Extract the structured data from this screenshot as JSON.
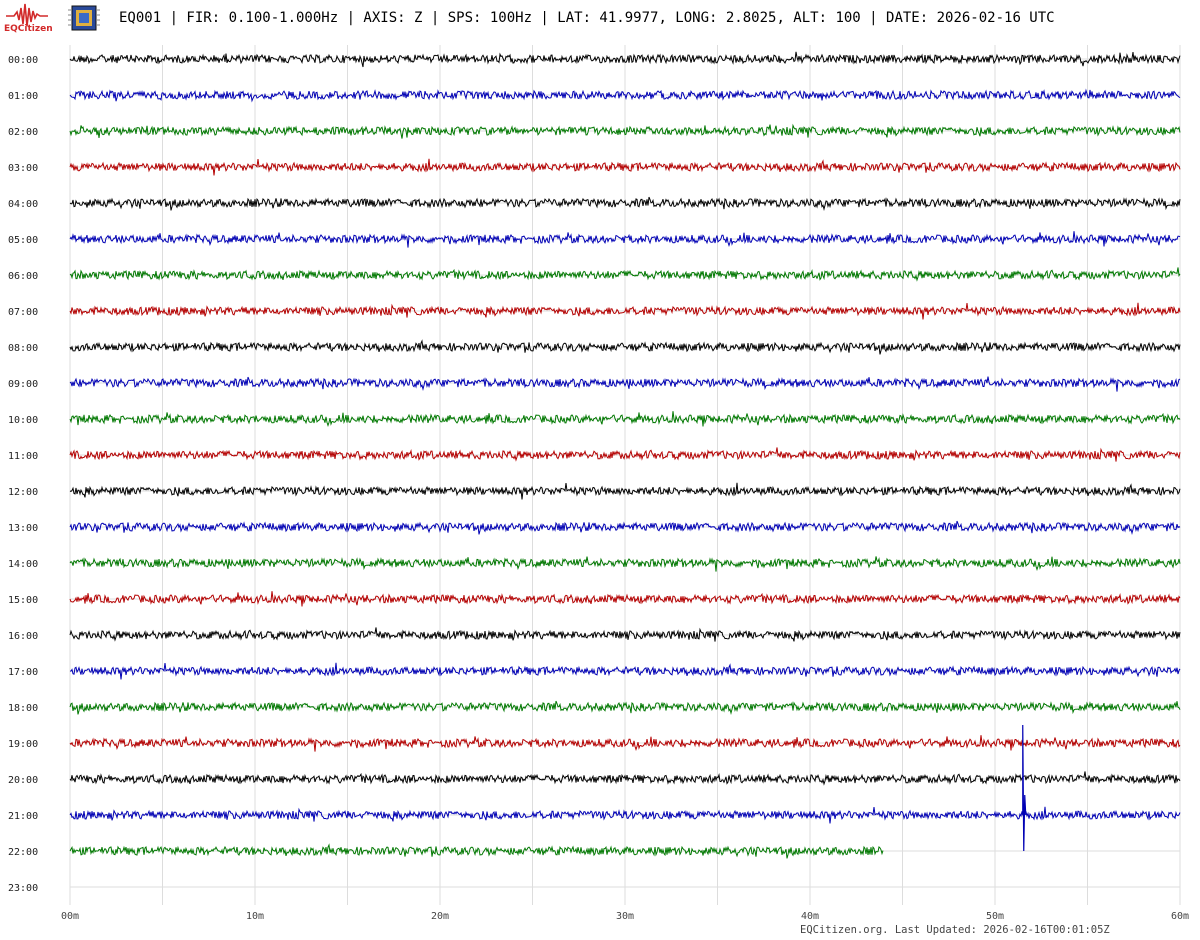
{
  "header": {
    "logo_text": "EQCitizen",
    "title": "EQ001 | FIR: 0.100-1.000Hz | AXIS: Z | SPS: 100Hz | LAT: 41.9977, LONG: 2.8025, ALT: 100 | DATE: 2026-02-16 UTC"
  },
  "footer": {
    "text": "EQCitizen.org. Last Updated: 2026-02-16T00:01:05Z"
  },
  "colors": {
    "trace_cycle": [
      "#000000",
      "#0000b4",
      "#007800",
      "#b40000"
    ],
    "grid": "#dddddd",
    "brand": "#d22a2a"
  },
  "chart_data": {
    "type": "line",
    "title": "",
    "xlabel": "",
    "ylabel": "",
    "xlim_minutes": [
      0,
      60
    ],
    "x_ticks": [
      "00m",
      "10m",
      "20m",
      "30m",
      "40m",
      "50m",
      "60m"
    ],
    "grid": true,
    "rows": [
      {
        "label": "00:00",
        "end_minute": 60
      },
      {
        "label": "01:00",
        "end_minute": 60
      },
      {
        "label": "02:00",
        "end_minute": 60
      },
      {
        "label": "03:00",
        "end_minute": 60
      },
      {
        "label": "04:00",
        "end_minute": 60
      },
      {
        "label": "05:00",
        "end_minute": 60
      },
      {
        "label": "06:00",
        "end_minute": 60
      },
      {
        "label": "07:00",
        "end_minute": 60
      },
      {
        "label": "08:00",
        "end_minute": 60
      },
      {
        "label": "09:00",
        "end_minute": 60
      },
      {
        "label": "10:00",
        "end_minute": 60
      },
      {
        "label": "11:00",
        "end_minute": 60
      },
      {
        "label": "12:00",
        "end_minute": 60
      },
      {
        "label": "13:00",
        "end_minute": 60
      },
      {
        "label": "14:00",
        "end_minute": 60
      },
      {
        "label": "15:00",
        "end_minute": 60
      },
      {
        "label": "16:00",
        "end_minute": 60
      },
      {
        "label": "17:00",
        "end_minute": 60
      },
      {
        "label": "18:00",
        "end_minute": 60
      },
      {
        "label": "19:00",
        "end_minute": 60
      },
      {
        "label": "20:00",
        "end_minute": 60
      },
      {
        "label": "21:00",
        "end_minute": 60
      },
      {
        "label": "22:00",
        "end_minute": 44
      },
      {
        "label": "23:00",
        "end_minute": 0
      }
    ],
    "event": {
      "row_label": "21:00",
      "minute": 51.5
    }
  }
}
